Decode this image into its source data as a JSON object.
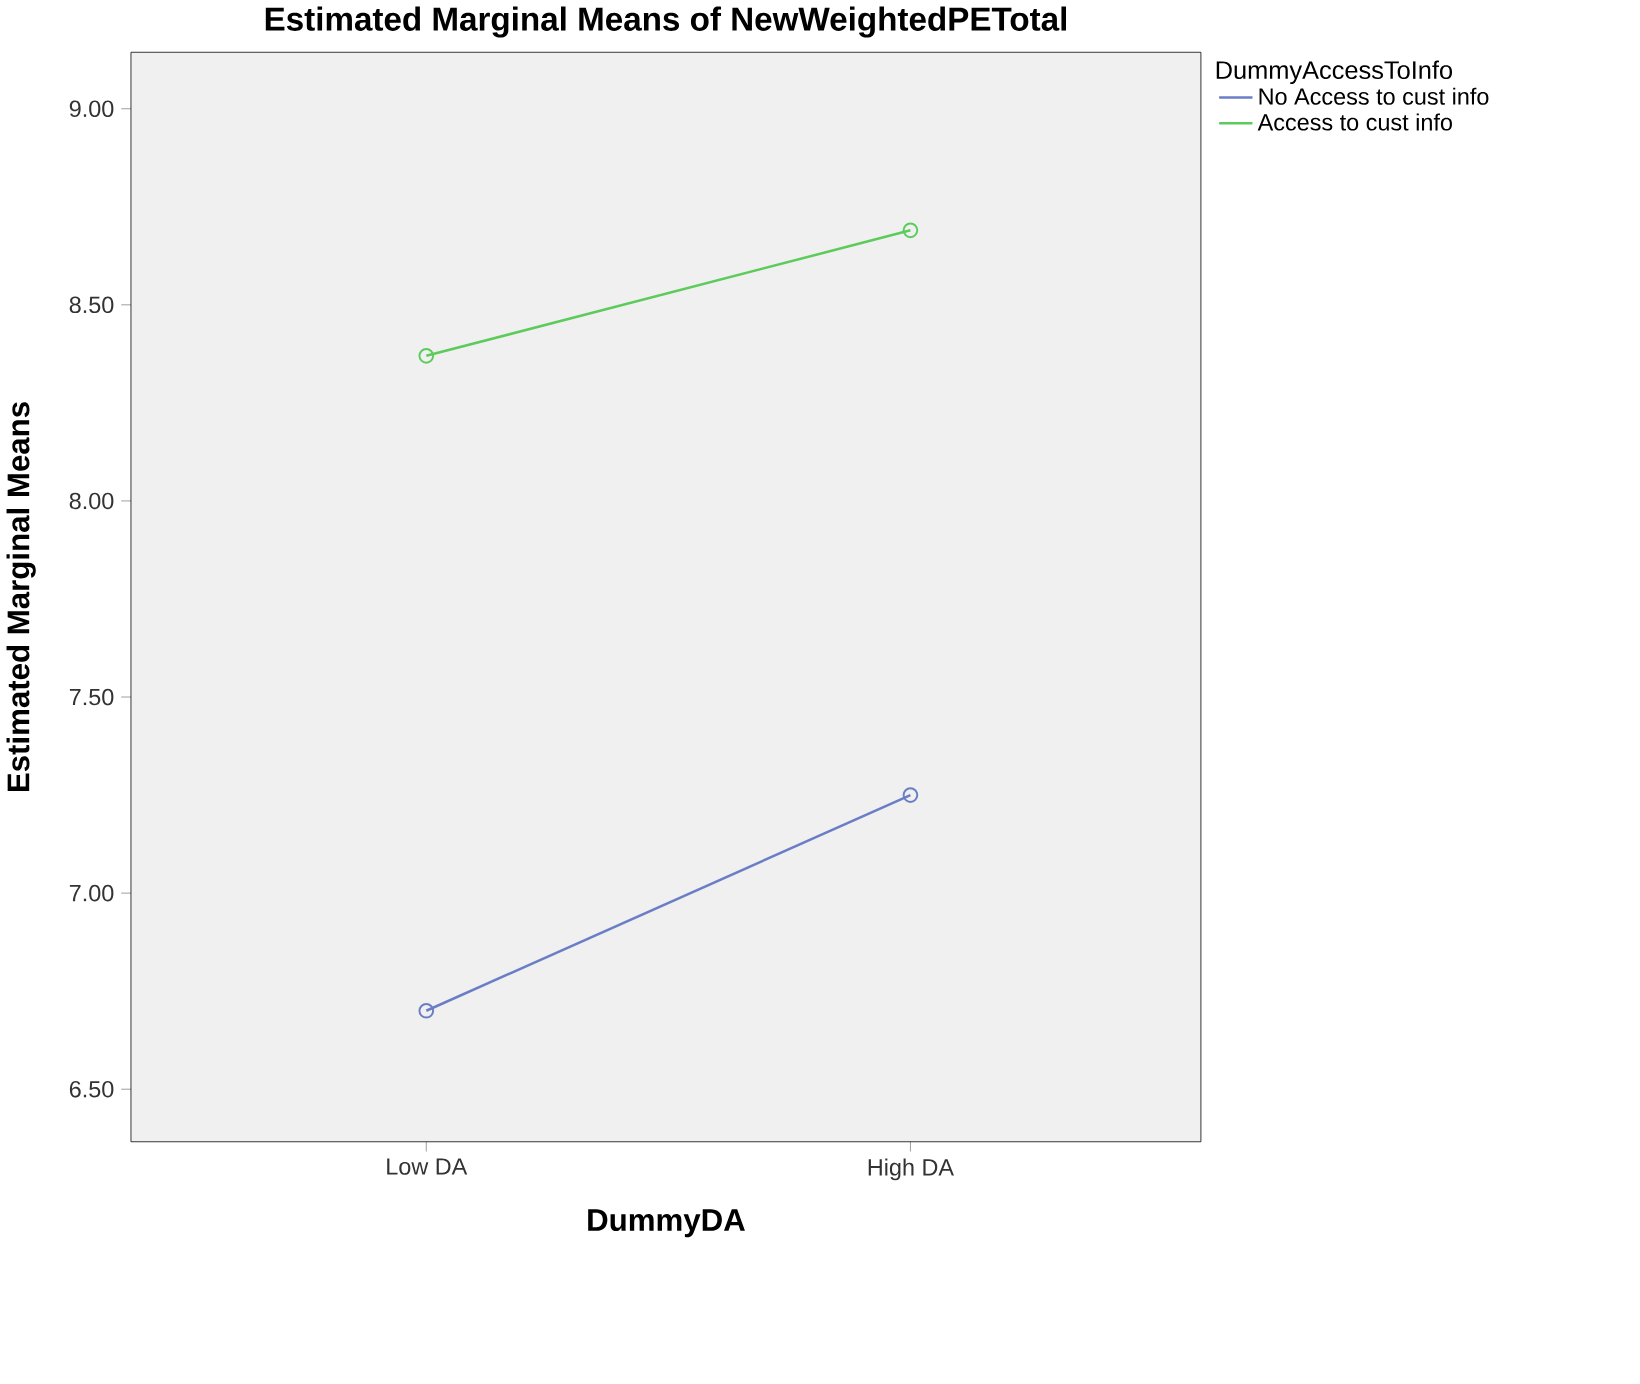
{
  "chart_data": {
    "type": "line",
    "title": "Estimated Marginal Means of NewWeightedPETotal",
    "xlabel": "DummyDA",
    "ylabel": "Estimated Marginal Means",
    "legend_title": "DummyAccessToInfo",
    "categories": [
      "Low DA",
      "High DA"
    ],
    "series": [
      {
        "name": "No Access to cust info",
        "color": "#6a7ec6",
        "values": [
          6.7,
          7.25
        ]
      },
      {
        "name": "Access to cust info",
        "color": "#5ccb5c",
        "values": [
          8.37,
          8.69
        ]
      }
    ],
    "ylim": [
      6.366,
      9.144
    ],
    "yticks": [
      {
        "value": 6.5,
        "label": "6.50"
      },
      {
        "value": 7.0,
        "label": "7.00"
      },
      {
        "value": 7.5,
        "label": "7.50"
      },
      {
        "value": 8.0,
        "label": "8.00"
      },
      {
        "value": 8.5,
        "label": "8.50"
      },
      {
        "value": 9.0,
        "label": "9.00"
      }
    ],
    "marker": "circle",
    "line_style": "solid",
    "legend": "top right",
    "grid": false
  }
}
